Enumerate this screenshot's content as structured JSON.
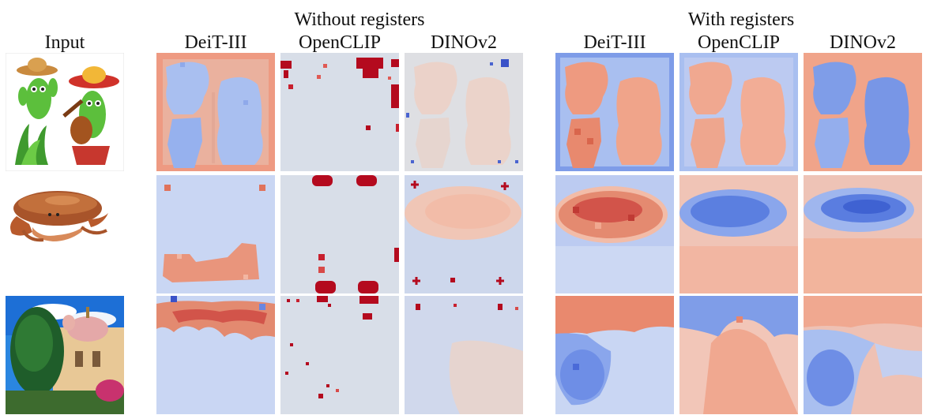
{
  "headers": {
    "input": "Input",
    "group_without": "Without registers",
    "group_with": "With registers",
    "columns": [
      "DeiT-III",
      "OpenCLIP",
      "DINOv2",
      "DeiT-III",
      "OpenCLIP",
      "DINOv2"
    ]
  },
  "rows": [
    "cactus-illustration",
    "crab",
    "church"
  ],
  "colors": {
    "blue": "#5b7fe0",
    "pale_blue": "#cdd9f3",
    "neutral": "#dedfe3",
    "salmon": "#f0b49e",
    "orange": "#e8826a",
    "dark_red": "#b40a1e"
  }
}
